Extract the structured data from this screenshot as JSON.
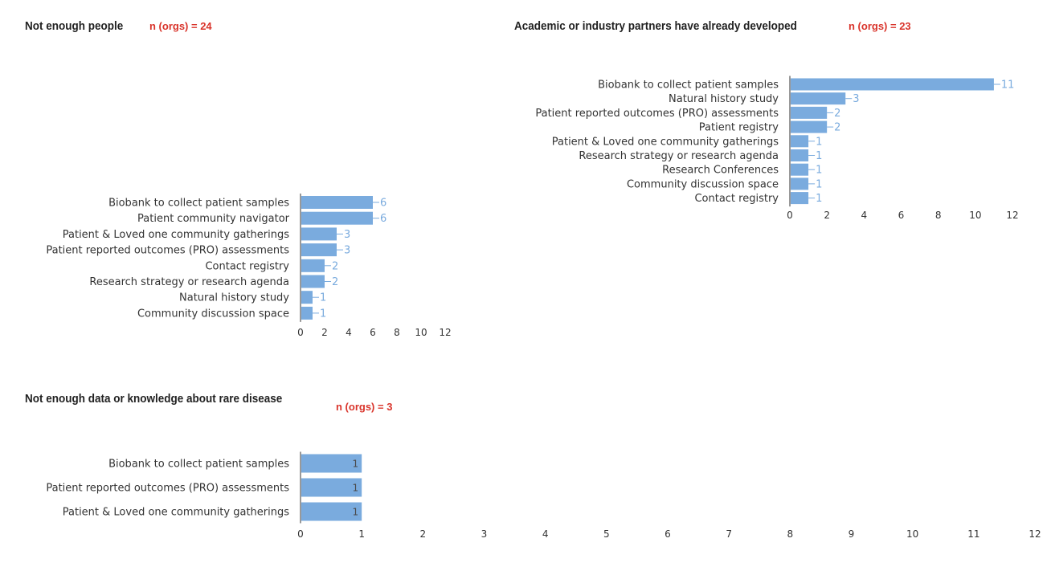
{
  "colors": {
    "bar": "#7aabde",
    "label": "#7aabde",
    "n_label": "#d9342b",
    "axis": "#333333",
    "text": "#333333"
  },
  "chart_data": [
    {
      "type": "bar",
      "orientation": "horizontal",
      "title": "Not enough people",
      "n_label": "n (orgs) = 24",
      "categories": [
        "Biobank to collect patient samples",
        "Patient community navigator",
        "Patient & Loved one community gatherings",
        "Patient reported outcomes (PRO) assessments",
        "Contact registry",
        "Research strategy or research agenda",
        "Natural history study",
        "Community discussion space"
      ],
      "values": [
        6,
        6,
        3,
        3,
        2,
        2,
        1,
        1
      ],
      "xlim": [
        0,
        12
      ],
      "xticks": [
        0,
        2,
        4,
        6,
        8,
        10,
        12
      ],
      "grid": false,
      "label_style": "outside"
    },
    {
      "type": "bar",
      "orientation": "horizontal",
      "title": "Academic or industry partners have already developed",
      "n_label": "n (orgs) = 23",
      "categories": [
        "Biobank to collect patient samples",
        "Natural history study",
        "Patient reported outcomes (PRO) assessments",
        "Patient registry",
        "Patient & Loved one community gatherings",
        "Research strategy or research agenda",
        "Research Conferences",
        "Community discussion space",
        "Contact registry"
      ],
      "values": [
        11,
        3,
        2,
        2,
        1,
        1,
        1,
        1,
        1
      ],
      "xlim": [
        0,
        12
      ],
      "xticks": [
        0,
        2,
        4,
        6,
        8,
        10,
        12
      ],
      "grid": false,
      "label_style": "outside"
    },
    {
      "type": "bar",
      "orientation": "horizontal",
      "title": "Not enough data or knowledge about rare disease",
      "n_label": "n (orgs) = 3",
      "categories": [
        "Biobank to collect patient samples",
        "Patient reported outcomes (PRO) assessments",
        "Patient & Loved one community gatherings"
      ],
      "values": [
        1,
        1,
        1
      ],
      "xlim": [
        0,
        12
      ],
      "xticks": [
        0,
        1,
        2,
        3,
        4,
        5,
        6,
        7,
        8,
        9,
        10,
        11,
        12
      ],
      "grid": false,
      "label_style": "inside"
    }
  ]
}
